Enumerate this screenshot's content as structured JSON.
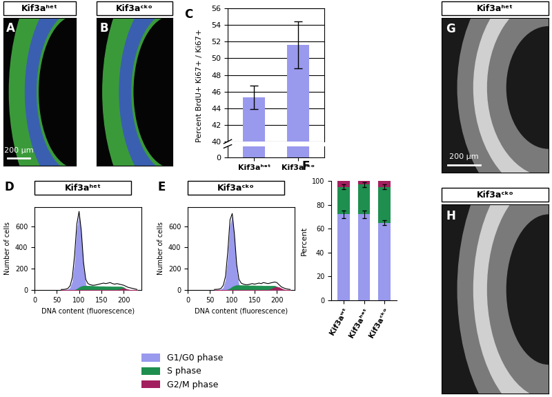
{
  "images": [
    {
      "panel_label": "A",
      "title": "Kif3aʰᵉᵗ",
      "scale_bar": "200 µm"
    },
    {
      "panel_label": "B",
      "title": "Kif3aᶜᵏᵒ"
    },
    {
      "panel_label": "G",
      "title": "Kif3aʰᵉᵗ",
      "scale_bar": "200 µm"
    },
    {
      "panel_label": "H",
      "title": "Kif3aᶜᵏᵒ"
    }
  ],
  "chart_data": [
    {
      "panel_label": "C",
      "type": "bar",
      "categories": [
        "Kif3aʰᵉᵗ",
        "Kif3aᶜᵏᵒ"
      ],
      "values": [
        45.3,
        51.6
      ],
      "errors": [
        1.4,
        2.8
      ],
      "color": "#9999ee",
      "y_label": "Percent BrdU+ Ki67+ / Ki67+",
      "ylim": [
        40,
        56
      ],
      "yticks": [
        40,
        42,
        44,
        46,
        48,
        50,
        52,
        54,
        56
      ],
      "y_break": {
        "ylim": [
          0,
          2
        ],
        "yticks": [
          0
        ]
      },
      "grid": true
    },
    {
      "panel_label": "D",
      "title": "Kif3aʰᵉᵗ",
      "type": "area",
      "x_label": "DNA content (fluorescence)",
      "y_label": "Number of cells",
      "xlim": [
        0,
        240
      ],
      "xticks": [
        0,
        50,
        100,
        150,
        200
      ],
      "ylim": [
        0,
        780
      ],
      "yticks": [
        0,
        200,
        400,
        600
      ],
      "x": [
        60,
        65,
        70,
        75,
        80,
        85,
        90,
        95,
        100,
        105,
        110,
        115,
        120,
        125,
        130,
        135,
        140,
        145,
        150,
        155,
        160,
        165,
        170,
        175,
        180,
        185,
        190,
        195,
        200,
        205,
        210,
        215,
        220,
        225,
        230
      ],
      "series": [
        {
          "name": "G1/G0 phase",
          "color": "#9999ee",
          "values": [
            0,
            0,
            2,
            5,
            20,
            80,
            250,
            560,
            700,
            500,
            200,
            50,
            10,
            2,
            0,
            0,
            0,
            0,
            0,
            0,
            0,
            0,
            0,
            0,
            0,
            0,
            0,
            0,
            0,
            0,
            0,
            0,
            0,
            0,
            0
          ]
        },
        {
          "name": "S phase",
          "color": "#1f8f4f",
          "values": [
            0,
            0,
            0,
            0,
            0,
            0,
            0,
            10,
            25,
            35,
            40,
            40,
            40,
            38,
            38,
            36,
            36,
            35,
            35,
            35,
            34,
            34,
            34,
            33,
            33,
            33,
            32,
            32,
            25,
            10,
            0,
            0,
            0,
            0,
            0
          ]
        },
        {
          "name": "G2/M phase",
          "color": "#a3205e",
          "values": [
            0,
            0,
            0,
            0,
            0,
            0,
            0,
            0,
            0,
            0,
            0,
            0,
            0,
            0,
            0,
            0,
            0,
            0,
            0,
            0,
            0,
            0,
            0,
            0,
            0,
            0,
            5,
            10,
            15,
            10,
            5,
            0,
            0,
            0,
            0
          ]
        },
        {
          "type": "line",
          "color": "#000000",
          "values": [
            5,
            5,
            8,
            15,
            40,
            120,
            330,
            620,
            740,
            560,
            260,
            100,
            60,
            50,
            45,
            45,
            50,
            55,
            60,
            65,
            60,
            65,
            70,
            60,
            55,
            60,
            55,
            50,
            45,
            35,
            25,
            20,
            15,
            10,
            5
          ]
        }
      ]
    },
    {
      "panel_label": "E",
      "title": "Kif3aᶜᵏᵒ",
      "type": "area",
      "x_label": "DNA content (fluorescence)",
      "y_label": "Number of cells",
      "xlim": [
        0,
        240
      ],
      "xticks": [
        0,
        50,
        100,
        150,
        200
      ],
      "ylim": [
        0,
        780
      ],
      "yticks": [
        0,
        200,
        400,
        600
      ],
      "x": [
        60,
        65,
        70,
        75,
        80,
        85,
        90,
        95,
        100,
        105,
        110,
        115,
        120,
        125,
        130,
        135,
        140,
        145,
        150,
        155,
        160,
        165,
        170,
        175,
        180,
        185,
        190,
        195,
        200,
        205,
        210,
        215,
        220,
        225,
        230
      ],
      "series": [
        {
          "name": "G1/G0 phase",
          "color": "#9999ee",
          "values": [
            0,
            0,
            2,
            5,
            20,
            90,
            280,
            600,
            690,
            450,
            170,
            40,
            8,
            2,
            0,
            0,
            0,
            0,
            0,
            0,
            0,
            0,
            0,
            0,
            0,
            0,
            0,
            0,
            0,
            0,
            0,
            0,
            0,
            0,
            0
          ]
        },
        {
          "name": "S phase",
          "color": "#1f8f4f",
          "values": [
            0,
            0,
            0,
            0,
            0,
            0,
            5,
            15,
            30,
            40,
            45,
            45,
            44,
            44,
            43,
            43,
            42,
            42,
            42,
            41,
            41,
            41,
            40,
            40,
            40,
            40,
            40,
            40,
            30,
            15,
            5,
            0,
            0,
            0,
            0
          ]
        },
        {
          "name": "G2/M phase",
          "color": "#a3205e",
          "values": [
            0,
            0,
            0,
            0,
            0,
            0,
            0,
            0,
            0,
            0,
            0,
            0,
            0,
            0,
            0,
            0,
            0,
            0,
            0,
            0,
            0,
            0,
            0,
            0,
            0,
            5,
            15,
            25,
            30,
            25,
            15,
            5,
            0,
            0,
            0
          ]
        },
        {
          "type": "line",
          "color": "#000000",
          "values": [
            5,
            6,
            8,
            15,
            45,
            130,
            360,
            660,
            720,
            520,
            240,
            100,
            65,
            55,
            50,
            50,
            55,
            60,
            55,
            60,
            65,
            60,
            70,
            65,
            60,
            65,
            70,
            75,
            70,
            50,
            30,
            20,
            12,
            8,
            5
          ]
        }
      ]
    },
    {
      "panel_label": "F",
      "type": "bar",
      "stacked": true,
      "legend": "lower center",
      "categories": [
        "Kif3aʷᵗ",
        "Kif3aʰᵉᵗ",
        "Kif3aᶜᵏᵒ"
      ],
      "y_label": "Percent",
      "ylim": [
        0,
        100
      ],
      "yticks": [
        0,
        20,
        40,
        60,
        80,
        100
      ],
      "series": [
        {
          "name": "G1/G0 phase",
          "color": "#9999ee",
          "values": [
            72,
            72,
            65
          ],
          "errors": [
            3,
            3,
            2
          ]
        },
        {
          "name": "S phase",
          "color": "#1f8f4f",
          "values": [
            23,
            25,
            30
          ],
          "errors": [
            2,
            2,
            2
          ]
        },
        {
          "name": "G2/M phase",
          "color": "#a3205e",
          "values": [
            5,
            3,
            5
          ]
        }
      ]
    }
  ]
}
